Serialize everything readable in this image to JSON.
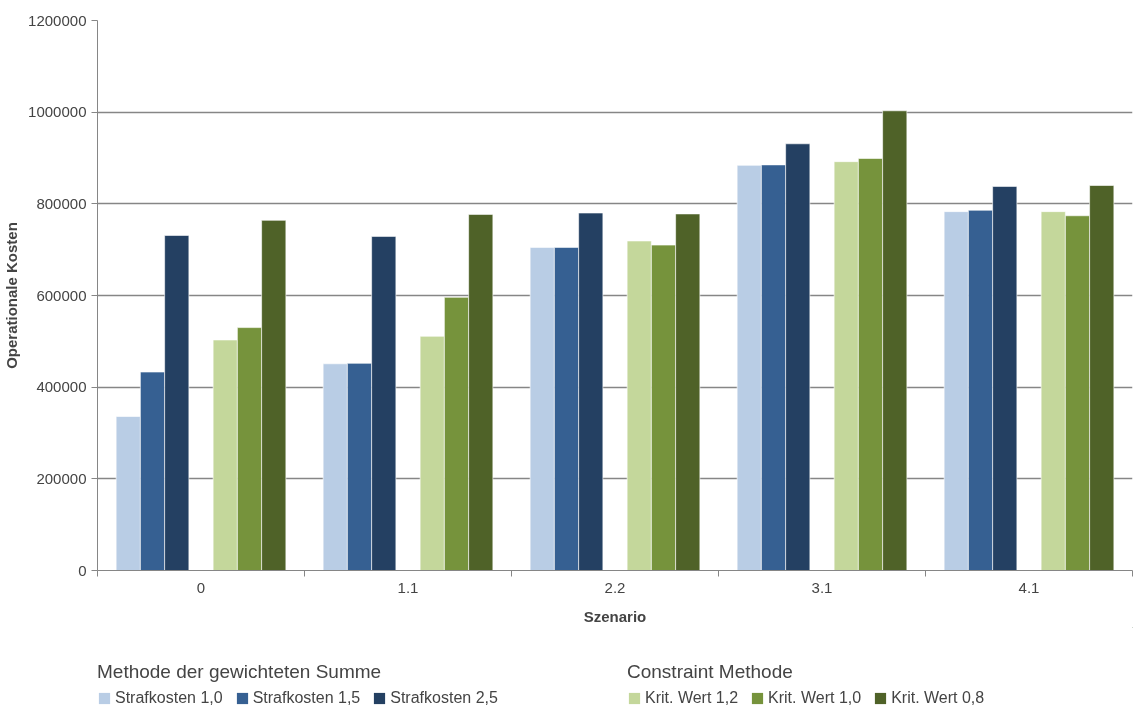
{
  "chart_data": {
    "type": "bar",
    "xlabel": "Szenario",
    "ylabel": "Operationale Kosten",
    "categories": [
      "0",
      "1.1",
      "2.2",
      "3.1",
      "4.1"
    ],
    "series": [
      {
        "name": "Strafkosten 1,0",
        "color": "#b9cde5",
        "values": [
          336000,
          451000,
          705000,
          884000,
          783000
        ]
      },
      {
        "name": "Strafkosten 1,5",
        "color": "#366092",
        "values": [
          433000,
          452000,
          705000,
          885000,
          786000
        ]
      },
      {
        "name": "Strafkosten 2,5",
        "color": "#244062",
        "values": [
          731000,
          729000,
          780000,
          931000,
          838000
        ]
      },
      {
        "name": "Krit. Wert 1,2",
        "color": "#c4d79b",
        "values": [
          503000,
          511000,
          719000,
          892000,
          783000
        ]
      },
      {
        "name": "Krit. Wert 1,0",
        "color": "#76933c",
        "values": [
          530000,
          596000,
          710000,
          899000,
          774000
        ]
      },
      {
        "name": "Krit. Wert 0,8",
        "color": "#4f6228",
        "values": [
          764000,
          777000,
          778000,
          1003000,
          840000
        ]
      }
    ],
    "annotations": [
      "Methode der gewichteten Summe",
      "Constraint Methode"
    ],
    "ylim": [
      0,
      1200000
    ],
    "yticks": [
      0,
      200000,
      400000,
      600000,
      800000,
      1000000,
      1200000
    ],
    "grid": "y",
    "legend": "bottom"
  }
}
